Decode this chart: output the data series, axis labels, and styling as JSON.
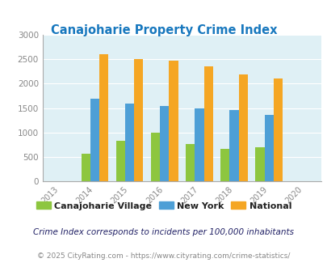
{
  "title": "Canajoharie Property Crime Index",
  "all_years": [
    2013,
    2014,
    2015,
    2016,
    2017,
    2018,
    2019,
    2020
  ],
  "data_years": [
    2014,
    2015,
    2016,
    2017,
    2018,
    2019
  ],
  "canajoharie": [
    570,
    830,
    1000,
    760,
    660,
    700
  ],
  "new_york": [
    1700,
    1590,
    1550,
    1500,
    1460,
    1370
  ],
  "national": [
    2600,
    2500,
    2470,
    2360,
    2190,
    2100
  ],
  "canajoharie_color": "#8DC63F",
  "new_york_color": "#4D9FD6",
  "national_color": "#F5A623",
  "background_color": "#DFF0F5",
  "title_color": "#1878BE",
  "axis_color": "#888888",
  "ylim": [
    0,
    3000
  ],
  "yticks": [
    0,
    500,
    1000,
    1500,
    2000,
    2500,
    3000
  ],
  "legend_labels": [
    "Canajoharie Village",
    "New York",
    "National"
  ],
  "legend_text_color": "#222222",
  "footnote1": "Crime Index corresponds to incidents per 100,000 inhabitants",
  "footnote1_color": "#222266",
  "footnote2": "© 2025 CityRating.com - https://www.cityrating.com/crime-statistics/",
  "footnote2_color": "#888888",
  "bar_width": 0.26
}
